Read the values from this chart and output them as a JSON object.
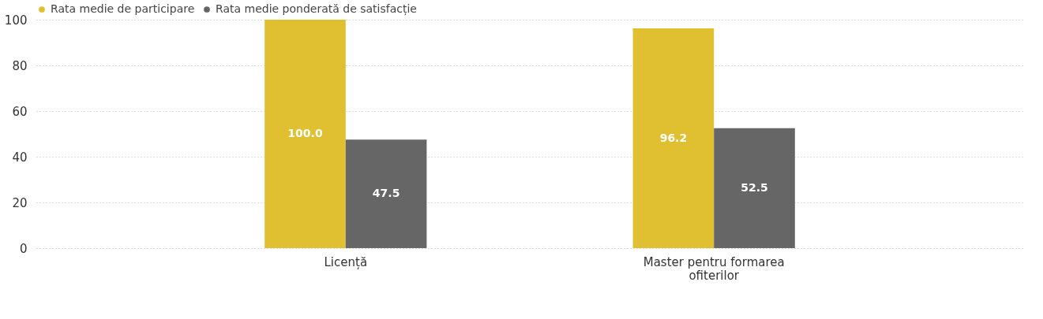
{
  "chart_data": {
    "type": "bar",
    "categories": [
      "Licență",
      "Master pentru formarea ofiterilor"
    ],
    "series": [
      {
        "name": "Rata medie de participare",
        "color": "#e0c030",
        "values": [
          100.0,
          96.2
        ],
        "value_labels": [
          "100.0",
          "96.2"
        ]
      },
      {
        "name": "Rata medie ponderată de satisfacție",
        "color": "#666666",
        "values": [
          47.5,
          52.5
        ],
        "value_labels": [
          "47.5",
          "52.5"
        ]
      }
    ],
    "ylim": [
      0,
      100
    ],
    "yticks": [
      0,
      20,
      40,
      60,
      80,
      100
    ],
    "grid": "y",
    "legend": "top left"
  }
}
